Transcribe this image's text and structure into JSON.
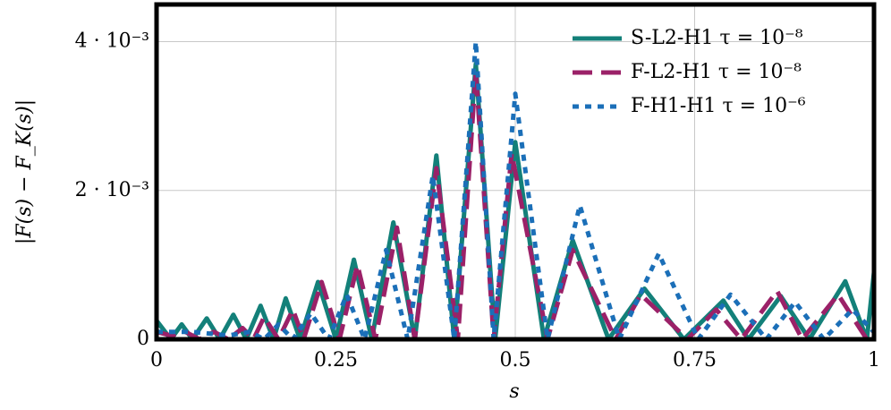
{
  "chart_data": {
    "type": "line",
    "xlabel": "s",
    "ylabel": "|F(s) − F_K(s)|",
    "xlim": [
      0,
      1
    ],
    "ylim": [
      0,
      0.0045
    ],
    "xticks": [
      0,
      0.25,
      0.5,
      0.75,
      1
    ],
    "yticks": [
      0,
      {
        "value": 0.002,
        "label": "2 · 10⁻³"
      },
      {
        "value": 0.004,
        "label": "4 · 10⁻³"
      }
    ],
    "grid": true,
    "legend": "top-right",
    "series": [
      {
        "name": "S-L2-H1 τ = 10⁻⁸",
        "color": "#138079",
        "dash": "solid",
        "x": [
          0,
          0.02,
          0.035,
          0.05,
          0.07,
          0.088,
          0.107,
          0.125,
          0.145,
          0.163,
          0.18,
          0.2,
          0.225,
          0.25,
          0.275,
          0.3,
          0.33,
          0.36,
          0.39,
          0.415,
          0.445,
          0.472,
          0.5,
          0.54,
          0.58,
          0.63,
          0.68,
          0.735,
          0.79,
          0.825,
          0.87,
          0.91,
          0.96,
          0.99,
          1
        ],
        "values": [
          0.00025,
          0,
          0.0002,
          0,
          0.00028,
          0,
          0.00033,
          0,
          0.00045,
          0,
          0.00055,
          0,
          0.00077,
          0,
          0.00107,
          0,
          0.00157,
          0,
          0.00247,
          0,
          0.0037,
          0,
          0.00265,
          0,
          0.00133,
          0,
          0.00068,
          0,
          0.00052,
          0,
          0.00058,
          0,
          0.00078,
          0,
          0.0009
        ]
      },
      {
        "name": "F-L2-H1 τ = 10⁻⁸",
        "color": "#9b2168",
        "dash": "dashed",
        "x": [
          0,
          0.02,
          0.04,
          0.06,
          0.08,
          0.1,
          0.12,
          0.135,
          0.15,
          0.17,
          0.19,
          0.205,
          0.23,
          0.255,
          0.28,
          0.305,
          0.335,
          0.36,
          0.39,
          0.42,
          0.445,
          0.47,
          0.495,
          0.545,
          0.58,
          0.64,
          0.675,
          0.74,
          0.78,
          0.815,
          0.865,
          0.9,
          0.95,
          0.99,
          1
        ],
        "values": [
          0.0001,
          5e-05,
          0.0001,
          0,
          0.0001,
          0,
          0.00015,
          0,
          0.0003,
          0,
          0.0004,
          0,
          0.00077,
          0,
          0.001,
          0,
          0.0015,
          0,
          0.0023,
          0,
          0.0036,
          0,
          0.0025,
          0,
          0.0012,
          0,
          0.0006,
          0,
          0.0004,
          0,
          0.00065,
          0,
          0.0006,
          0,
          0.0001
        ]
      },
      {
        "name": "F-H1-H1 τ = 10⁻⁶",
        "color": "#1b6fb8",
        "dash": "dotted",
        "x": [
          0,
          0.05,
          0.1,
          0.13,
          0.15,
          0.17,
          0.19,
          0.215,
          0.24,
          0.265,
          0.29,
          0.32,
          0.35,
          0.385,
          0.415,
          0.445,
          0.47,
          0.5,
          0.545,
          0.59,
          0.645,
          0.7,
          0.755,
          0.8,
          0.85,
          0.89,
          0.93,
          0.97,
          1
        ],
        "values": [
          0.0001,
          0.0001,
          5e-05,
          0.0001,
          0,
          0.0002,
          0,
          0.00035,
          0,
          0.0006,
          0,
          0.0012,
          0,
          0.0022,
          0,
          0.004,
          0,
          0.0033,
          0,
          0.0018,
          0,
          0.00115,
          0,
          0.0006,
          0,
          0.0005,
          0,
          0.0004,
          0.0001
        ]
      }
    ]
  }
}
